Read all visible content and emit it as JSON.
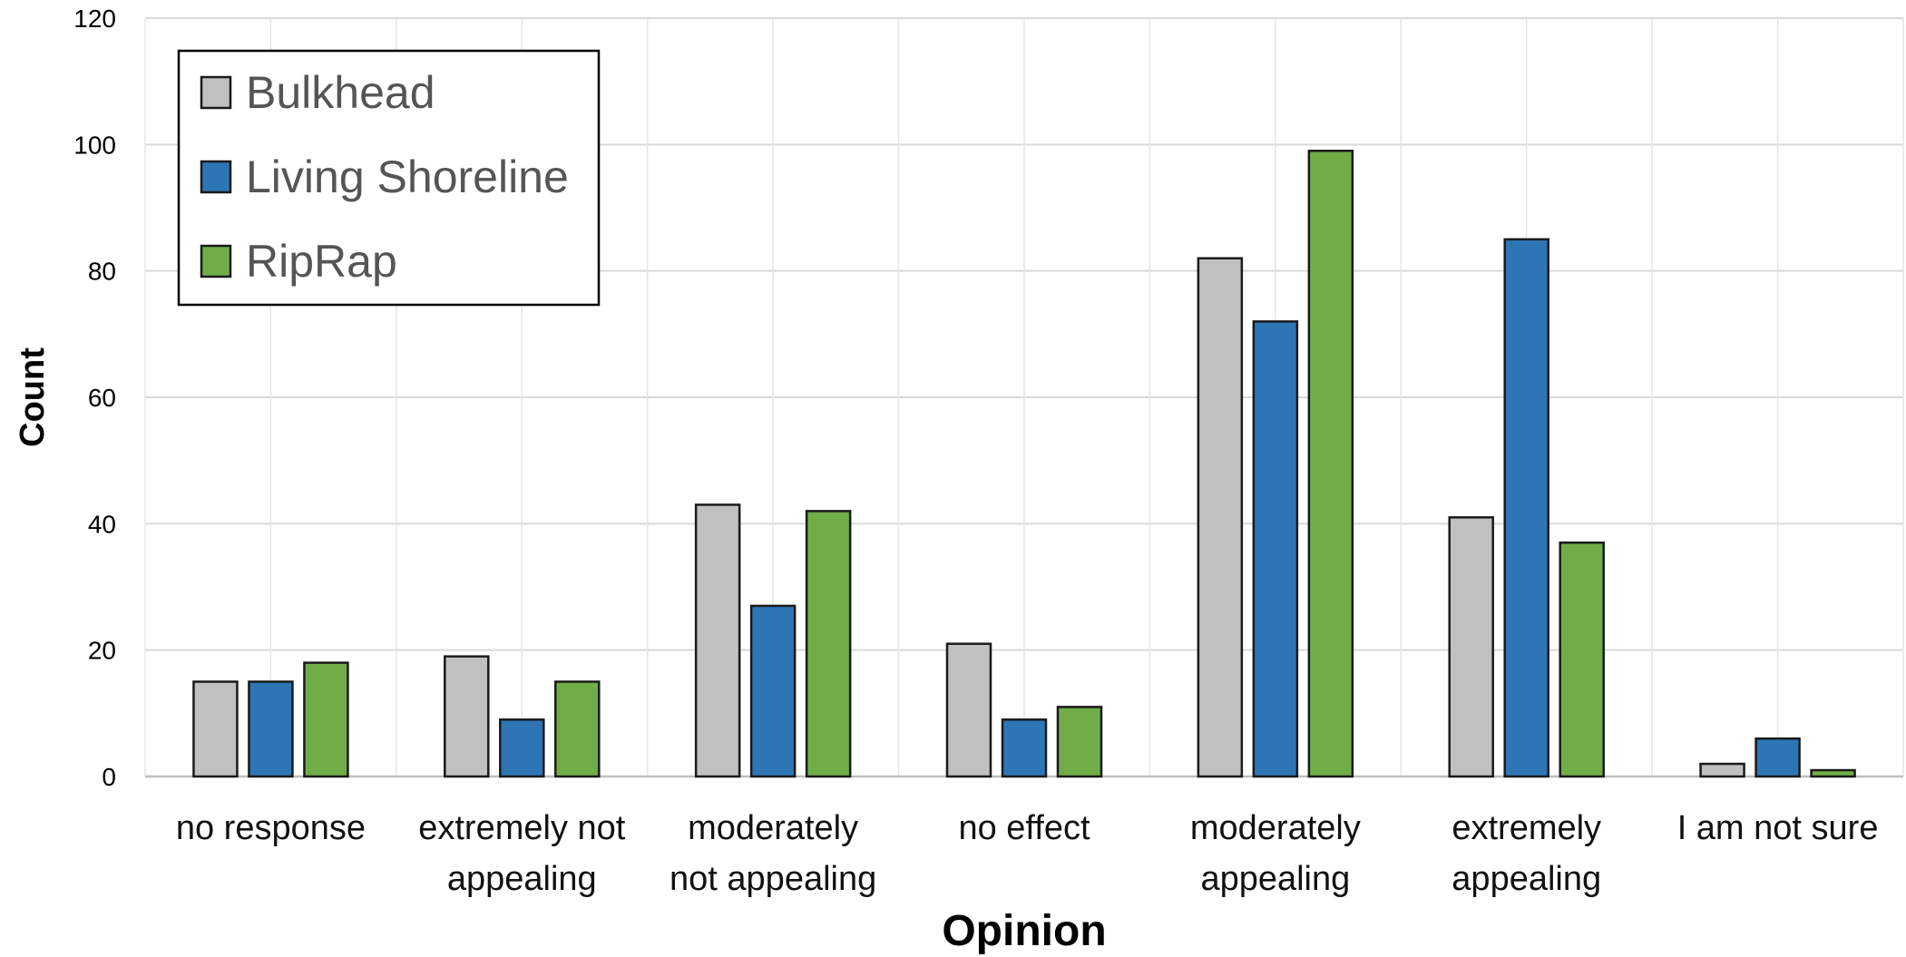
{
  "chart_data": {
    "type": "bar",
    "title": "",
    "xlabel": "Opinion",
    "ylabel": "Count",
    "ylim": [
      0,
      120
    ],
    "yticks": [
      0,
      20,
      40,
      60,
      80,
      100,
      120
    ],
    "grid": true,
    "legend_position": "top-left",
    "categories": [
      "no response",
      "extremely not appealing",
      "moderately not appealing",
      "no effect",
      "moderately appealing",
      "extremely appealing",
      "I am not sure"
    ],
    "category_lines": [
      [
        "no response"
      ],
      [
        "extremely not",
        "appealing"
      ],
      [
        "moderately",
        "not appealing"
      ],
      [
        "no effect"
      ],
      [
        "moderately",
        "appealing"
      ],
      [
        "extremely",
        "appealing"
      ],
      [
        "I am not sure"
      ]
    ],
    "series": [
      {
        "name": "Bulkhead",
        "color": "#c0c0c0",
        "values": [
          15,
          19,
          43,
          21,
          82,
          41,
          2
        ]
      },
      {
        "name": "Living Shoreline",
        "color": "#2e75b6",
        "values": [
          15,
          9,
          27,
          9,
          72,
          85,
          6
        ]
      },
      {
        "name": "RipRap",
        "color": "#70ad47",
        "values": [
          18,
          15,
          42,
          11,
          99,
          37,
          1
        ]
      }
    ]
  }
}
